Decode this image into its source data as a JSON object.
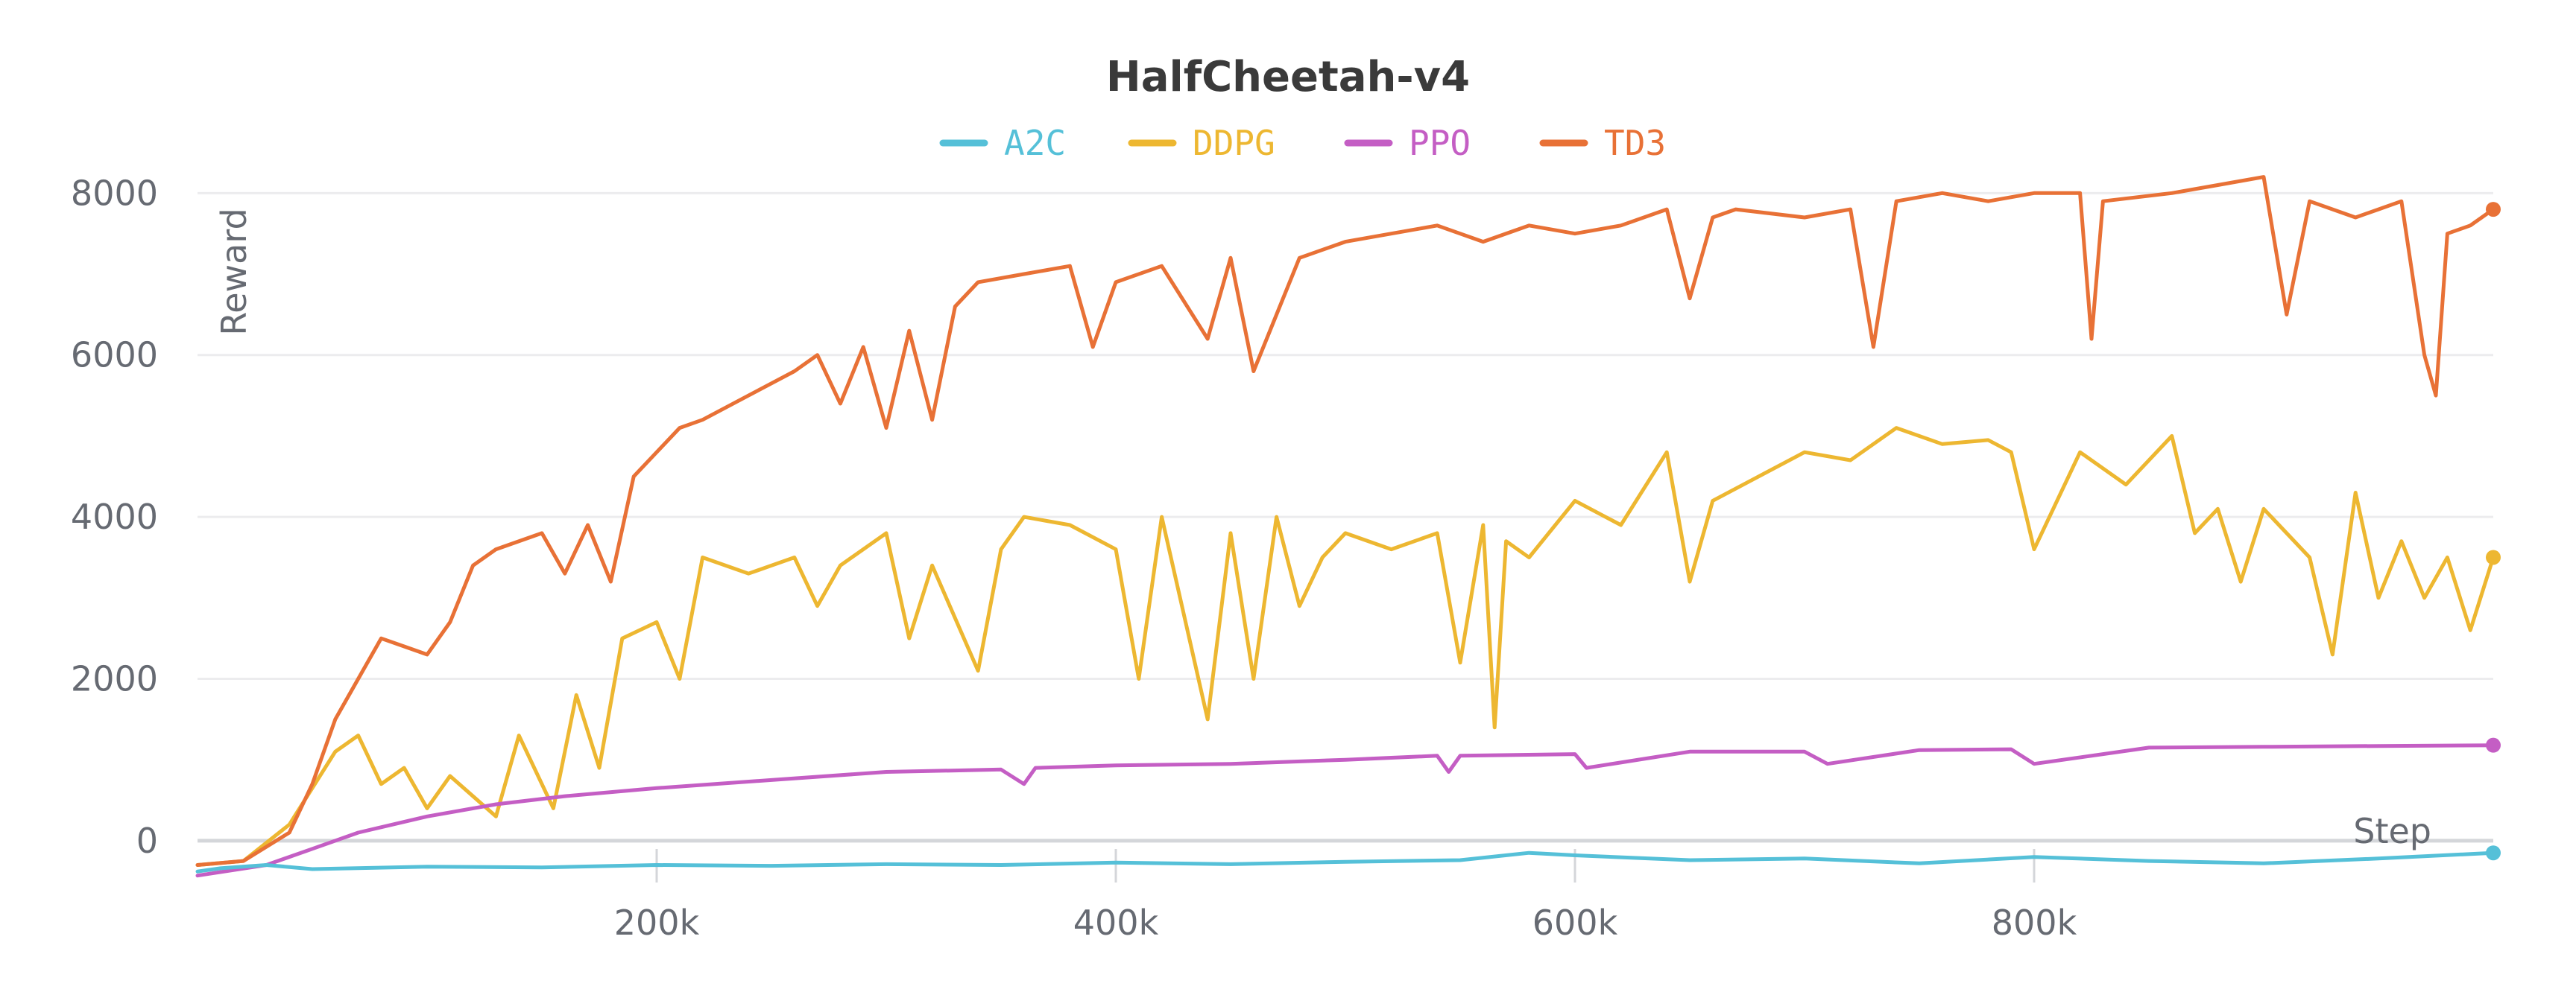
{
  "chart_data": {
    "type": "line",
    "title": "HalfCheetah-v4",
    "xlabel": "Step",
    "ylabel": "Reward",
    "xlim": [
      0,
      1000000
    ],
    "ylim": [
      -700,
      8500
    ],
    "x_ticks": [
      200000,
      400000,
      600000,
      800000
    ],
    "x_tick_labels": [
      "200k",
      "400k",
      "600k",
      "800k"
    ],
    "y_ticks": [
      0,
      2000,
      4000,
      6000,
      8000
    ],
    "y_tick_labels": [
      "0",
      "2000",
      "4000",
      "6000",
      "8000"
    ],
    "grid": true,
    "legend_position": "top",
    "series": [
      {
        "name": "A2C",
        "color": "#55c0d8",
        "x": [
          0,
          10000,
          30000,
          50000,
          100000,
          150000,
          200000,
          250000,
          300000,
          350000,
          400000,
          450000,
          500000,
          550000,
          580000,
          600000,
          650000,
          700000,
          750000,
          800000,
          850000,
          900000,
          950000,
          1000000
        ],
        "y": [
          -380,
          -340,
          -300,
          -350,
          -320,
          -330,
          -300,
          -310,
          -290,
          -300,
          -270,
          -290,
          -260,
          -240,
          -150,
          -180,
          -240,
          -220,
          -280,
          -200,
          -250,
          -280,
          -220,
          -150
        ]
      },
      {
        "name": "DDPG",
        "color": "#edb731",
        "x": [
          0,
          20000,
          40000,
          60000,
          70000,
          80000,
          90000,
          100000,
          110000,
          130000,
          140000,
          155000,
          165000,
          175000,
          185000,
          200000,
          210000,
          220000,
          240000,
          260000,
          270000,
          280000,
          300000,
          310000,
          320000,
          340000,
          350000,
          360000,
          380000,
          400000,
          410000,
          420000,
          440000,
          450000,
          460000,
          470000,
          480000,
          490000,
          500000,
          520000,
          540000,
          550000,
          560000,
          565000,
          570000,
          580000,
          600000,
          620000,
          640000,
          650000,
          660000,
          680000,
          700000,
          720000,
          740000,
          760000,
          780000,
          790000,
          800000,
          820000,
          840000,
          860000,
          870000,
          880000,
          890000,
          900000,
          920000,
          930000,
          940000,
          950000,
          960000,
          970000,
          980000,
          990000,
          1000000
        ],
        "y": [
          -300,
          -250,
          200,
          1100,
          1300,
          700,
          900,
          400,
          800,
          300,
          1300,
          400,
          1800,
          900,
          2500,
          2700,
          2000,
          3500,
          3300,
          3500,
          2900,
          3400,
          3800,
          2500,
          3400,
          2100,
          3600,
          4000,
          3900,
          3600,
          2000,
          4000,
          1500,
          3800,
          2000,
          4000,
          2900,
          3500,
          3800,
          3600,
          3800,
          2200,
          3900,
          1400,
          3700,
          3500,
          4200,
          3900,
          4800,
          3200,
          4200,
          4500,
          4800,
          4700,
          5100,
          4900,
          4950,
          4800,
          3600,
          4800,
          4400,
          5000,
          3800,
          4100,
          3200,
          4100,
          3500,
          2300,
          4300,
          3000,
          3700,
          3000,
          3500,
          2600,
          3500
        ]
      },
      {
        "name": "PPO",
        "color": "#c45ec4",
        "x": [
          0,
          30000,
          50000,
          70000,
          100000,
          130000,
          160000,
          200000,
          250000,
          300000,
          350000,
          360000,
          365000,
          400000,
          450000,
          500000,
          540000,
          545000,
          550000,
          600000,
          605000,
          650000,
          700000,
          710000,
          750000,
          790000,
          800000,
          850000,
          900000,
          950000,
          1000000
        ],
        "y": [
          -430,
          -300,
          -100,
          100,
          300,
          450,
          550,
          650,
          750,
          850,
          880,
          700,
          900,
          930,
          950,
          1000,
          1050,
          850,
          1050,
          1070,
          900,
          1100,
          1100,
          950,
          1120,
          1130,
          950,
          1150,
          1160,
          1170,
          1180
        ]
      },
      {
        "name": "TD3",
        "color": "#e87136",
        "x": [
          0,
          20000,
          40000,
          50000,
          60000,
          70000,
          80000,
          90000,
          100000,
          110000,
          120000,
          130000,
          150000,
          160000,
          170000,
          180000,
          190000,
          200000,
          210000,
          220000,
          240000,
          260000,
          270000,
          280000,
          290000,
          300000,
          310000,
          320000,
          330000,
          340000,
          360000,
          380000,
          390000,
          400000,
          420000,
          440000,
          450000,
          460000,
          480000,
          500000,
          520000,
          540000,
          560000,
          580000,
          600000,
          620000,
          640000,
          650000,
          660000,
          670000,
          700000,
          720000,
          730000,
          740000,
          760000,
          780000,
          800000,
          820000,
          825000,
          830000,
          860000,
          880000,
          900000,
          910000,
          920000,
          940000,
          950000,
          960000,
          970000,
          975000,
          980000,
          990000,
          1000000
        ],
        "y": [
          -300,
          -250,
          100,
          700,
          1500,
          2000,
          2500,
          2400,
          2300,
          2700,
          3400,
          3600,
          3800,
          3300,
          3900,
          3200,
          4500,
          4800,
          5100,
          5200,
          5500,
          5800,
          6000,
          5400,
          6100,
          5100,
          6300,
          5200,
          6600,
          6900,
          7000,
          7100,
          6100,
          6900,
          7100,
          6200,
          7200,
          5800,
          7200,
          7400,
          7500,
          7600,
          7400,
          7600,
          7500,
          7600,
          7800,
          6700,
          7700,
          7800,
          7700,
          7800,
          6100,
          7900,
          8000,
          7900,
          8000,
          8000,
          6200,
          7900,
          8000,
          8100,
          8200,
          6500,
          7900,
          7700,
          7800,
          7900,
          6000,
          5500,
          7500,
          7600,
          7800
        ]
      }
    ]
  }
}
